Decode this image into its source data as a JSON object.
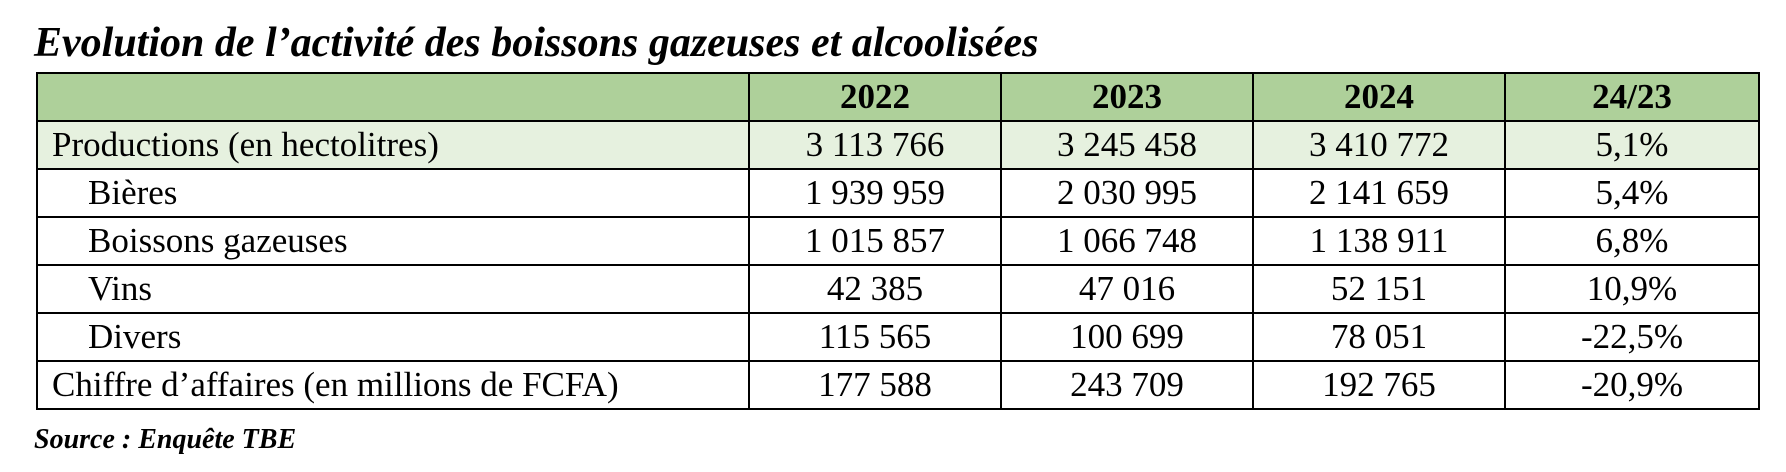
{
  "title": "Evolution de l’activité des boissons gazeuses et alcoolisées",
  "table": {
    "headers": [
      "",
      "2022",
      "2023",
      "2024",
      "24/23"
    ],
    "rows": [
      {
        "label": "Productions (en hectolitres)",
        "values": [
          "3 113 766",
          "3 245 458",
          "3 410 772",
          "5,1%"
        ]
      },
      {
        "label": "Bières",
        "values": [
          "1 939 959",
          "2 030 995",
          "2 141 659",
          "5,4%"
        ]
      },
      {
        "label": "Boissons gazeuses",
        "values": [
          "1 015 857",
          "1 066 748",
          "1 138 911",
          "6,8%"
        ]
      },
      {
        "label": "Vins",
        "values": [
          "42 385",
          "47 016",
          "52 151",
          "10,9%"
        ]
      },
      {
        "label": "Divers",
        "values": [
          "115 565",
          "100 699",
          "78 051",
          "-22,5%"
        ]
      },
      {
        "label": "Chiffre d’affaires (en millions de FCFA)",
        "values": [
          "177 588",
          "243 709",
          "192 765",
          "-20,9%"
        ]
      }
    ]
  },
  "source": "Source : Enquête TBE",
  "colors": {
    "header_bg": "#aed09a",
    "highlight_row_bg": "#e6f1df"
  }
}
